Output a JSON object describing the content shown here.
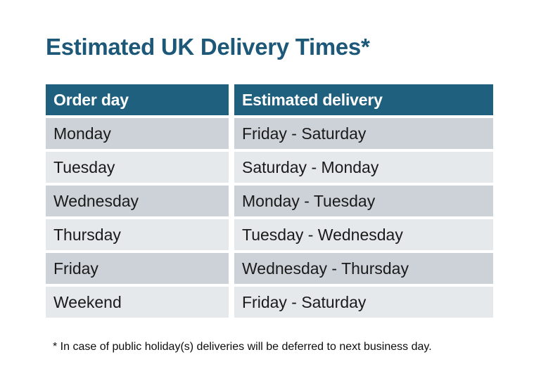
{
  "page": {
    "title": "Estimated UK Delivery Times*",
    "footnote": "* In case of public holiday(s) deliveries will be deferred to next business day."
  },
  "table": {
    "headers": {
      "order_day": "Order day",
      "estimated_delivery": "Estimated delivery"
    },
    "rows": [
      {
        "order_day": "Monday",
        "estimated_delivery": "Friday - Saturday"
      },
      {
        "order_day": "Tuesday",
        "estimated_delivery": "Saturday - Monday"
      },
      {
        "order_day": "Wednesday",
        "estimated_delivery": "Monday - Tuesday"
      },
      {
        "order_day": "Thursday",
        "estimated_delivery": "Tuesday - Wednesday"
      },
      {
        "order_day": "Friday",
        "estimated_delivery": "Wednesday - Thursday"
      },
      {
        "order_day": "Weekend",
        "estimated_delivery": "Friday - Saturday"
      }
    ]
  },
  "chart_data": {
    "type": "table",
    "title": "Estimated UK Delivery Times*",
    "columns": [
      "Order day",
      "Estimated delivery"
    ],
    "rows": [
      [
        "Monday",
        "Friday - Saturday"
      ],
      [
        "Tuesday",
        "Saturday - Monday"
      ],
      [
        "Wednesday",
        "Monday - Tuesday"
      ],
      [
        "Thursday",
        "Tuesday - Wednesday"
      ],
      [
        "Friday",
        "Wednesday - Thursday"
      ],
      [
        "Weekend",
        "Friday - Saturday"
      ]
    ],
    "footnote": "* In case of public holiday(s) deliveries will be deferred to next business day."
  },
  "colors": {
    "title_text": "#1d5878",
    "header_bg": "#20607f",
    "header_text": "#ffffff",
    "row_dark_bg": "#cdd2d8",
    "row_light_bg": "#e6e9eb",
    "cell_text": "#1a1a1a",
    "background": "#ffffff"
  }
}
